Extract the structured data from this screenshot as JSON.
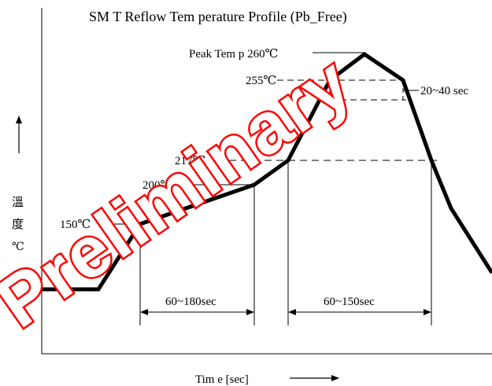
{
  "title": "SM T Reflow Tem perature Profile (Pb_Free)",
  "watermark": "Preliminary",
  "y_axis_label": [
    "溫",
    "度",
    "℃"
  ],
  "x_axis_label": "Tim e [sec]",
  "labels": {
    "peak": "Peak Tem p 260℃",
    "t255": "255℃",
    "t217": "217℃",
    "t200": "200℃",
    "t150": "150℃",
    "dwell_peak": "20~40 sec",
    "preheat": "60~180sec",
    "above_liquidus": "60~150sec"
  },
  "colors": {
    "curve": "#000000",
    "watermark": "#ff0000"
  }
}
